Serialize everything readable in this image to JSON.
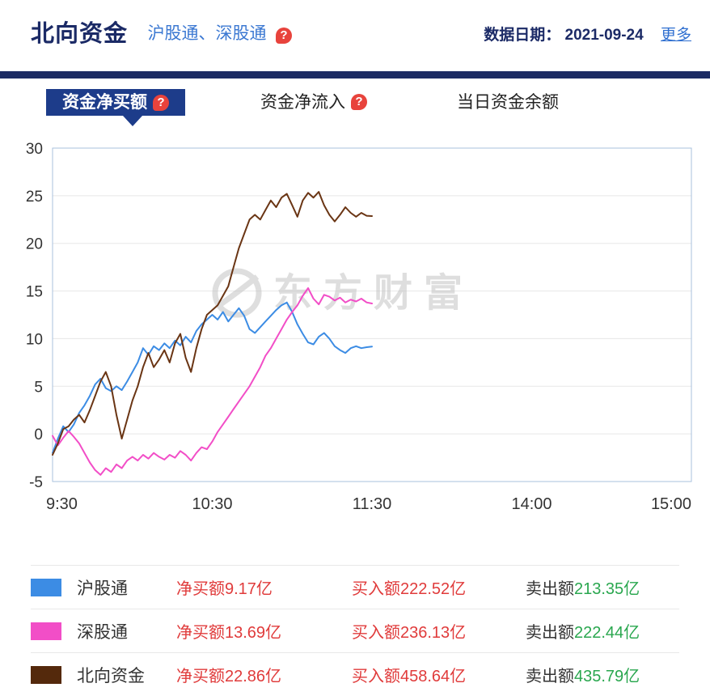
{
  "header": {
    "title": "北向资金",
    "subtitle": "沪股通、深股通",
    "date_label": "数据日期：",
    "date": "2021-09-24",
    "more": "更多"
  },
  "tabs": [
    {
      "label": "资金净买额"
    },
    {
      "label": "资金净流入"
    },
    {
      "label": "当日资金余额"
    }
  ],
  "watermark": "东方财富",
  "chart_data": {
    "type": "line",
    "title": "",
    "xlabel": "",
    "ylabel": "",
    "ylim": [
      -5,
      30
    ],
    "y_ticks": [
      -5,
      0,
      5,
      10,
      15,
      20,
      25,
      30
    ],
    "grid": true,
    "x_start": "9:30",
    "interval_min": 2,
    "axis_total_min": 240,
    "x_ticks": [
      "9:30",
      "10:30",
      "11:30",
      "14:00",
      "15:00"
    ],
    "x_tick_min": [
      0,
      60,
      120,
      180,
      240
    ],
    "unit": "亿",
    "series": [
      {
        "name": "沪股通",
        "color": "#3c8ce4",
        "values": [
          -2.0,
          -0.5,
          0.8,
          0.2,
          1.0,
          2.2,
          3.0,
          4.0,
          5.2,
          5.8,
          4.8,
          4.5,
          5.0,
          4.6,
          5.5,
          6.5,
          7.5,
          9.0,
          8.3,
          9.2,
          8.8,
          9.5,
          9.0,
          9.8,
          9.3,
          10.2,
          9.6,
          10.8,
          11.5,
          12.0,
          12.5,
          12.0,
          12.8,
          11.8,
          12.5,
          13.2,
          12.4,
          11.0,
          10.6,
          11.2,
          11.8,
          12.4,
          13.0,
          13.5,
          13.8,
          12.8,
          11.5,
          10.5,
          9.6,
          9.4,
          10.2,
          10.6,
          10.0,
          9.2,
          8.8,
          8.5,
          9.0,
          9.2,
          9.0,
          9.1,
          9.17
        ]
      },
      {
        "name": "深股通",
        "color": "#f24ec7",
        "values": [
          -0.2,
          -1.2,
          -0.4,
          0.3,
          -0.3,
          -1.0,
          -2.0,
          -3.0,
          -3.8,
          -4.3,
          -3.6,
          -4.0,
          -3.2,
          -3.6,
          -2.8,
          -2.4,
          -2.8,
          -2.2,
          -2.6,
          -2.0,
          -2.4,
          -2.7,
          -2.2,
          -2.5,
          -1.8,
          -2.2,
          -2.8,
          -2.0,
          -1.4,
          -1.6,
          -0.8,
          0.2,
          1.0,
          1.8,
          2.6,
          3.4,
          4.2,
          5.0,
          6.0,
          7.0,
          8.2,
          9.0,
          10.0,
          11.0,
          12.0,
          12.8,
          13.5,
          14.5,
          15.3,
          14.2,
          13.6,
          14.6,
          14.4,
          14.0,
          14.3,
          13.8,
          14.1,
          13.9,
          14.2,
          13.8,
          13.69
        ]
      },
      {
        "name": "北向资金",
        "color": "#6a3514",
        "values": [
          -2.2,
          -1.0,
          0.5,
          0.8,
          1.5,
          2.0,
          1.2,
          2.5,
          4.0,
          5.5,
          6.5,
          5.0,
          2.0,
          -0.5,
          1.5,
          3.5,
          5.0,
          7.0,
          8.5,
          7.0,
          7.8,
          8.8,
          7.5,
          9.5,
          10.5,
          8.0,
          6.5,
          9.0,
          11.0,
          12.5,
          13.0,
          13.5,
          14.5,
          15.5,
          17.5,
          19.5,
          21.0,
          22.5,
          23.0,
          22.5,
          23.5,
          24.5,
          23.8,
          24.8,
          25.2,
          24.0,
          22.8,
          24.5,
          25.3,
          24.8,
          25.4,
          24.0,
          23.0,
          22.3,
          23.0,
          23.8,
          23.2,
          22.8,
          23.2,
          22.9,
          22.86
        ]
      }
    ]
  },
  "legend": {
    "rows": [
      {
        "swatch": "#3c8ce4",
        "name": "沪股通",
        "net_text": "净买额9.17亿",
        "buy_text": "买入额222.52亿",
        "sell_label": "卖出额",
        "sell_value": "213.35亿"
      },
      {
        "swatch": "#f24ec7",
        "name": "深股通",
        "net_text": "净买额13.69亿",
        "buy_text": "买入额236.13亿",
        "sell_label": "卖出额",
        "sell_value": "222.44亿"
      },
      {
        "swatch": "#54290c",
        "name": "北向资金",
        "net_text": "净买额22.86亿",
        "buy_text": "买入额458.64亿",
        "sell_label": "卖出额",
        "sell_value": "435.79亿"
      }
    ]
  }
}
